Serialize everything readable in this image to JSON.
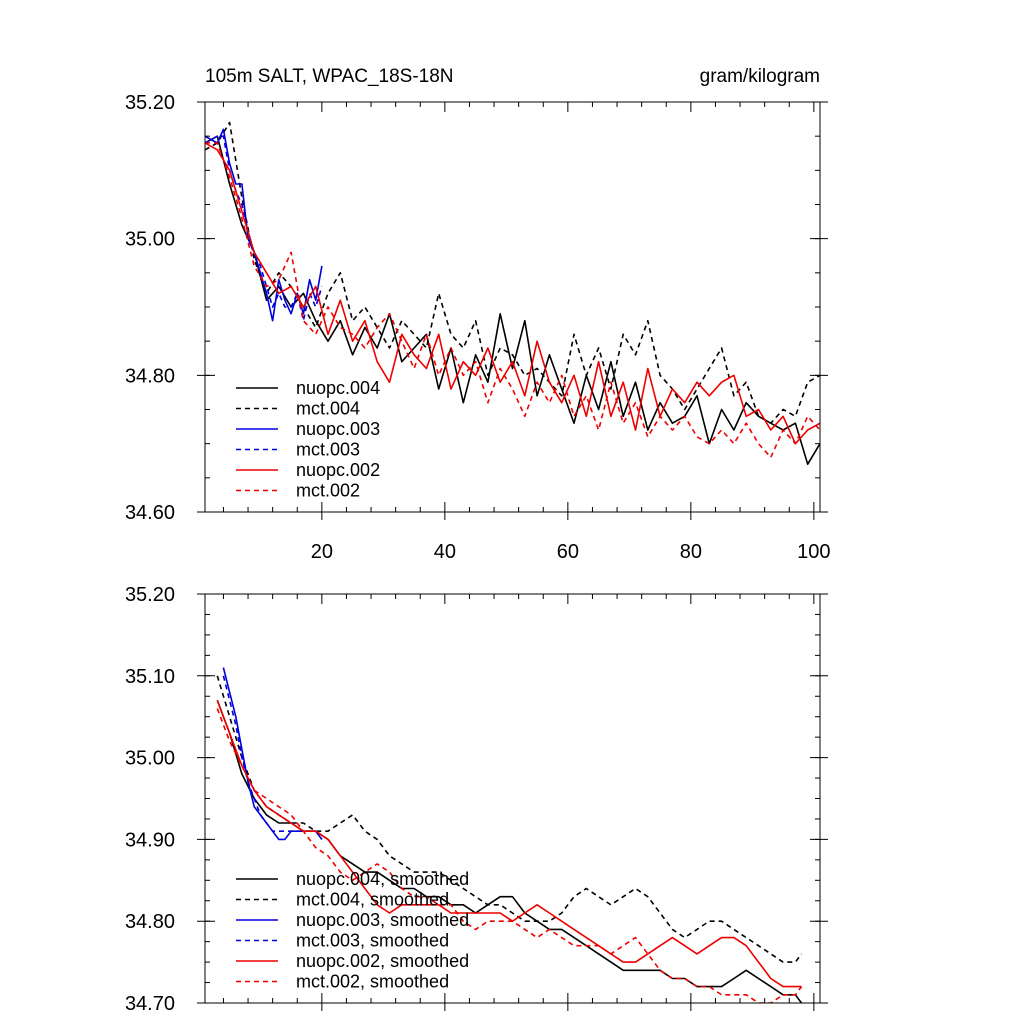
{
  "chart_data": [
    {
      "type": "line",
      "title": "105m SALT, WPAC_18S-18N",
      "units": "gram/kilogram",
      "xlim": [
        1,
        101
      ],
      "ylim": [
        34.6,
        35.2
      ],
      "xticks": [
        "20",
        "40",
        "60",
        "80",
        "100"
      ],
      "yticks": [
        "34.60",
        "34.80",
        "35.00",
        "35.20"
      ],
      "legend": [
        "nuopc.004",
        "mct.004",
        "nuopc.003",
        "mct.003",
        "nuopc.002",
        "mct.002"
      ],
      "series": [
        {
          "name": "nuopc.004",
          "color": "#000000",
          "dashed": false,
          "x": [
            1,
            3,
            5,
            7,
            9,
            11,
            13,
            15,
            17,
            19,
            21,
            23,
            25,
            27,
            29,
            31,
            33,
            35,
            37,
            39,
            41,
            43,
            45,
            47,
            49,
            51,
            53,
            55,
            57,
            59,
            61,
            63,
            65,
            67,
            69,
            71,
            73,
            75,
            77,
            79,
            81,
            83,
            85,
            87,
            89,
            91,
            93,
            95,
            97,
            99,
            101
          ],
          "y": [
            35.14,
            35.15,
            35.08,
            35.02,
            34.98,
            34.91,
            34.93,
            34.9,
            34.92,
            34.88,
            34.85,
            34.88,
            34.83,
            34.87,
            34.84,
            34.89,
            34.82,
            34.84,
            34.86,
            34.78,
            34.84,
            34.76,
            34.83,
            34.79,
            34.89,
            34.81,
            34.88,
            34.77,
            34.83,
            34.78,
            34.73,
            34.8,
            34.75,
            34.82,
            34.74,
            34.79,
            34.72,
            34.76,
            34.73,
            34.74,
            34.77,
            34.7,
            34.75,
            34.72,
            34.76,
            34.74,
            34.73,
            34.72,
            34.73,
            34.67,
            34.7
          ]
        },
        {
          "name": "mct.004",
          "color": "#000000",
          "dashed": true,
          "x": [
            1,
            3,
            5,
            7,
            9,
            11,
            13,
            15,
            17,
            19,
            21,
            23,
            25,
            27,
            29,
            31,
            33,
            35,
            37,
            39,
            41,
            43,
            45,
            47,
            49,
            51,
            53,
            55,
            57,
            59,
            61,
            63,
            65,
            67,
            69,
            71,
            73,
            75,
            77,
            79,
            81,
            83,
            85,
            87,
            89,
            91,
            93,
            95,
            97,
            99,
            101
          ],
          "y": [
            35.13,
            35.14,
            35.17,
            35.06,
            34.97,
            34.92,
            34.95,
            34.93,
            34.9,
            34.87,
            34.92,
            34.95,
            34.88,
            34.9,
            34.87,
            34.84,
            34.88,
            34.86,
            34.84,
            34.92,
            34.86,
            34.84,
            34.88,
            34.8,
            34.84,
            34.83,
            34.8,
            34.81,
            34.79,
            34.77,
            34.86,
            34.8,
            34.84,
            34.78,
            34.86,
            34.83,
            34.88,
            34.8,
            34.78,
            34.75,
            34.78,
            34.81,
            34.84,
            34.77,
            34.79,
            34.74,
            34.73,
            34.75,
            34.74,
            34.79,
            34.8
          ]
        },
        {
          "name": "nuopc.003",
          "color": "#0000dd",
          "dashed": false,
          "x": [
            1,
            3,
            4,
            5,
            6,
            7,
            8,
            9,
            10,
            11,
            12,
            13,
            14,
            15,
            16,
            17,
            18,
            19,
            20
          ],
          "y": [
            35.15,
            35.14,
            35.16,
            35.11,
            35.08,
            35.08,
            35.0,
            34.98,
            34.95,
            34.92,
            34.88,
            34.94,
            34.91,
            34.89,
            34.92,
            34.89,
            34.94,
            34.91,
            34.96
          ]
        },
        {
          "name": "mct.003",
          "color": "#0000dd",
          "dashed": true,
          "x": [
            1,
            3,
            4,
            5,
            6,
            7,
            8,
            9,
            10,
            11,
            12,
            13,
            14,
            15,
            16,
            17,
            18,
            19,
            20
          ],
          "y": [
            35.14,
            35.15,
            35.15,
            35.1,
            35.07,
            35.05,
            35.01,
            34.98,
            34.96,
            34.93,
            34.9,
            34.92,
            34.9,
            34.9,
            34.92,
            34.88,
            34.92,
            34.9,
            34.93
          ]
        },
        {
          "name": "nuopc.002",
          "color": "#ee0000",
          "dashed": false,
          "x": [
            1,
            3,
            5,
            7,
            9,
            11,
            13,
            15,
            17,
            19,
            21,
            23,
            25,
            27,
            29,
            31,
            33,
            35,
            37,
            39,
            41,
            43,
            45,
            47,
            49,
            51,
            53,
            55,
            57,
            59,
            61,
            63,
            65,
            67,
            69,
            71,
            73,
            75,
            77,
            79,
            81,
            83,
            85,
            87,
            89,
            91,
            93,
            95,
            97,
            99,
            101
          ],
          "y": [
            35.14,
            35.13,
            35.1,
            35.04,
            34.98,
            34.95,
            34.92,
            34.93,
            34.9,
            34.93,
            34.86,
            34.91,
            34.85,
            34.88,
            34.82,
            34.79,
            34.86,
            34.83,
            34.81,
            34.86,
            34.78,
            34.82,
            34.8,
            34.84,
            34.79,
            34.82,
            34.77,
            34.85,
            34.79,
            34.76,
            34.8,
            34.74,
            34.82,
            34.74,
            34.79,
            34.72,
            34.81,
            34.74,
            34.78,
            34.76,
            34.79,
            34.77,
            34.79,
            34.8,
            34.74,
            34.75,
            34.72,
            34.74,
            34.7,
            34.72,
            34.73
          ]
        },
        {
          "name": "mct.002",
          "color": "#ee0000",
          "dashed": true,
          "x": [
            1,
            3,
            5,
            7,
            9,
            11,
            13,
            15,
            17,
            19,
            21,
            23,
            25,
            27,
            29,
            31,
            33,
            35,
            37,
            39,
            41,
            43,
            45,
            47,
            49,
            51,
            53,
            55,
            57,
            59,
            61,
            63,
            65,
            67,
            69,
            71,
            73,
            75,
            77,
            79,
            81,
            83,
            85,
            87,
            89,
            91,
            93,
            95,
            97,
            99,
            101
          ],
          "y": [
            35.14,
            35.14,
            35.09,
            35.03,
            34.96,
            34.93,
            34.94,
            34.98,
            34.88,
            34.86,
            34.9,
            34.87,
            34.86,
            34.84,
            34.87,
            34.89,
            34.85,
            34.81,
            34.86,
            34.8,
            34.84,
            34.8,
            34.82,
            34.76,
            34.81,
            34.78,
            34.74,
            34.79,
            34.76,
            34.8,
            34.74,
            34.77,
            34.72,
            34.79,
            34.73,
            34.76,
            34.71,
            34.74,
            34.72,
            34.74,
            34.71,
            34.7,
            34.72,
            34.7,
            34.73,
            34.7,
            34.68,
            34.72,
            34.7,
            34.74,
            34.72
          ]
        }
      ]
    },
    {
      "type": "line",
      "title": "",
      "xlim": [
        1,
        101
      ],
      "ylim": [
        34.7,
        35.2
      ],
      "yticks": [
        "34.70",
        "34.80",
        "34.90",
        "35.00",
        "35.10",
        "35.20"
      ],
      "legend": [
        "nuopc.004, smoothed",
        "mct.004, smoothed",
        "nuopc.003, smoothed",
        "mct.003, smoothed",
        "nuopc.002, smoothed",
        "mct.002, smoothed"
      ],
      "series": [
        {
          "name": "nuopc.004, smoothed",
          "color": "#000000",
          "dashed": false,
          "x": [
            3,
            5,
            7,
            9,
            11,
            13,
            15,
            17,
            19,
            21,
            23,
            25,
            27,
            29,
            31,
            33,
            35,
            37,
            39,
            41,
            43,
            45,
            47,
            49,
            51,
            53,
            55,
            57,
            59,
            61,
            63,
            65,
            67,
            69,
            71,
            73,
            75,
            77,
            79,
            81,
            83,
            85,
            87,
            89,
            91,
            93,
            95,
            97,
            98
          ],
          "y": [
            35.07,
            35.03,
            34.98,
            34.95,
            34.93,
            34.92,
            34.92,
            34.91,
            34.91,
            34.9,
            34.88,
            34.87,
            34.86,
            34.86,
            34.85,
            34.84,
            34.84,
            34.83,
            34.83,
            34.82,
            34.82,
            34.81,
            34.82,
            34.83,
            34.83,
            34.81,
            34.8,
            34.79,
            34.79,
            34.78,
            34.77,
            34.76,
            34.75,
            34.74,
            34.74,
            34.74,
            34.74,
            34.73,
            34.73,
            34.72,
            34.72,
            34.72,
            34.73,
            34.74,
            34.73,
            34.72,
            34.71,
            34.71,
            34.7
          ]
        },
        {
          "name": "mct.004, smoothed",
          "color": "#000000",
          "dashed": true,
          "x": [
            3,
            5,
            7,
            9,
            11,
            13,
            15,
            17,
            19,
            21,
            23,
            25,
            27,
            29,
            31,
            33,
            35,
            37,
            39,
            41,
            43,
            45,
            47,
            49,
            51,
            53,
            55,
            57,
            59,
            61,
            63,
            65,
            67,
            69,
            71,
            73,
            75,
            77,
            79,
            81,
            83,
            85,
            87,
            89,
            91,
            93,
            95,
            97,
            98
          ],
          "y": [
            35.1,
            35.05,
            35.0,
            34.96,
            34.94,
            34.93,
            34.92,
            34.92,
            34.91,
            34.91,
            34.92,
            34.93,
            34.91,
            34.9,
            34.88,
            34.87,
            34.86,
            34.86,
            34.86,
            34.85,
            34.84,
            34.83,
            34.82,
            34.82,
            34.81,
            34.8,
            34.8,
            34.8,
            34.81,
            34.83,
            34.84,
            34.83,
            34.82,
            34.83,
            34.84,
            34.83,
            34.81,
            34.79,
            34.78,
            34.79,
            34.8,
            34.8,
            34.79,
            34.78,
            34.77,
            34.76,
            34.75,
            34.75,
            34.76
          ]
        },
        {
          "name": "nuopc.003, smoothed",
          "color": "#0000dd",
          "dashed": false,
          "x": [
            4,
            5,
            6,
            7,
            8,
            9,
            10,
            11,
            12,
            13,
            14,
            15,
            16,
            17,
            18,
            19,
            20
          ],
          "y": [
            35.11,
            35.08,
            35.05,
            35.01,
            34.97,
            34.94,
            34.93,
            34.92,
            34.91,
            34.9,
            34.9,
            34.91,
            34.91,
            34.91,
            34.91,
            34.91,
            34.9
          ]
        },
        {
          "name": "mct.003, smoothed",
          "color": "#0000dd",
          "dashed": true,
          "x": [
            4,
            5,
            6,
            7,
            8,
            9,
            10,
            11,
            12,
            13,
            14,
            15,
            16,
            17,
            18,
            19,
            20
          ],
          "y": [
            35.1,
            35.07,
            35.04,
            35.0,
            34.97,
            34.95,
            34.93,
            34.92,
            34.91,
            34.91,
            34.91,
            34.91,
            34.91,
            34.91,
            34.91,
            34.91,
            34.9
          ]
        },
        {
          "name": "nuopc.002, smoothed",
          "color": "#ee0000",
          "dashed": false,
          "x": [
            3,
            5,
            7,
            9,
            11,
            13,
            15,
            17,
            19,
            21,
            23,
            25,
            27,
            29,
            31,
            33,
            35,
            37,
            39,
            41,
            43,
            45,
            47,
            49,
            51,
            53,
            55,
            57,
            59,
            61,
            63,
            65,
            67,
            69,
            71,
            73,
            75,
            77,
            79,
            81,
            83,
            85,
            87,
            89,
            91,
            93,
            95,
            97,
            98
          ],
          "y": [
            35.07,
            35.03,
            34.99,
            34.96,
            34.94,
            34.93,
            34.92,
            34.91,
            34.91,
            34.9,
            34.88,
            34.86,
            34.84,
            34.82,
            34.81,
            34.82,
            34.82,
            34.82,
            34.82,
            34.81,
            34.81,
            34.81,
            34.81,
            34.81,
            34.8,
            34.81,
            34.82,
            34.81,
            34.8,
            34.79,
            34.78,
            34.77,
            34.76,
            34.75,
            34.75,
            34.76,
            34.77,
            34.78,
            34.77,
            34.76,
            34.77,
            34.78,
            34.78,
            34.77,
            34.75,
            34.73,
            34.72,
            34.72,
            34.72
          ]
        },
        {
          "name": "mct.002, smoothed",
          "color": "#ee0000",
          "dashed": true,
          "x": [
            3,
            5,
            7,
            9,
            11,
            13,
            15,
            17,
            19,
            21,
            23,
            25,
            27,
            29,
            31,
            33,
            35,
            37,
            39,
            41,
            43,
            45,
            47,
            49,
            51,
            53,
            55,
            57,
            59,
            61,
            63,
            65,
            67,
            69,
            71,
            73,
            75,
            77,
            79,
            81,
            83,
            85,
            87,
            89,
            91,
            93,
            95,
            97,
            98
          ],
          "y": [
            35.06,
            35.02,
            34.99,
            34.96,
            34.95,
            34.94,
            34.93,
            34.91,
            34.89,
            34.88,
            34.86,
            34.85,
            34.86,
            34.87,
            34.86,
            34.84,
            34.83,
            34.83,
            34.82,
            34.82,
            34.8,
            34.79,
            34.8,
            34.8,
            34.8,
            34.79,
            34.78,
            34.79,
            34.78,
            34.77,
            34.77,
            34.77,
            34.76,
            34.77,
            34.78,
            34.76,
            34.74,
            34.73,
            34.73,
            34.72,
            34.72,
            34.71,
            34.71,
            34.71,
            34.7,
            34.7,
            34.71,
            34.71,
            34.72
          ]
        }
      ]
    }
  ]
}
